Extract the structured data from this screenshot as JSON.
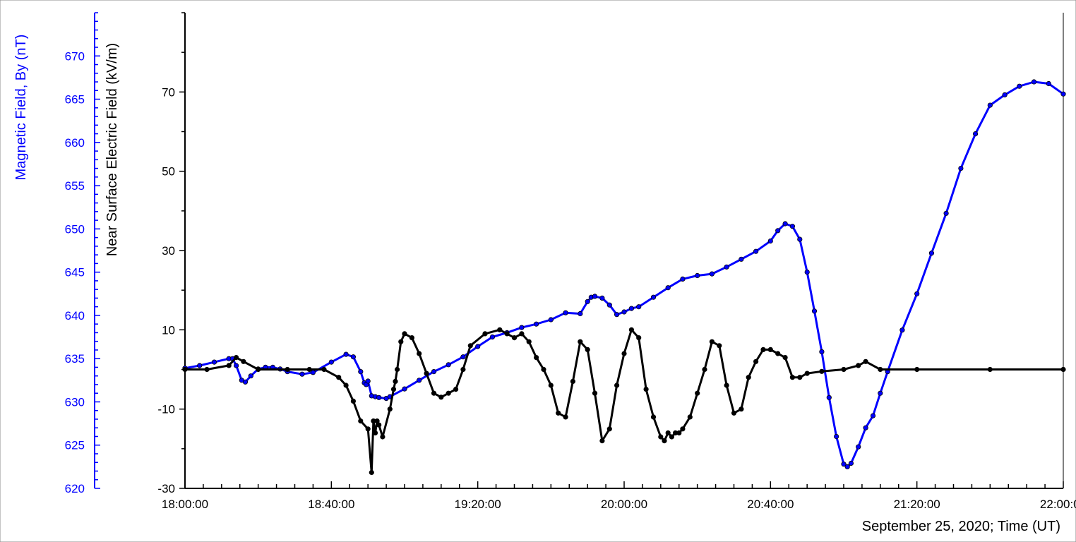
{
  "chart_data": {
    "type": "line",
    "xlabel": "September 25, 2020; Time (UT)",
    "x_tick_labels": [
      "18:00:00",
      "18:40:00",
      "19:20:00",
      "20:00:00",
      "20:40:00",
      "21:20:00",
      "22:00:00"
    ],
    "x_range_minutes": [
      0,
      240
    ],
    "y_left_outer": {
      "label": "Magnetic Field, By (nT)",
      "range": [
        620,
        675
      ],
      "ticks": [
        620,
        625,
        630,
        635,
        640,
        645,
        650,
        655,
        660,
        665,
        670
      ],
      "color": "#0000ff"
    },
    "y_left_inner": {
      "label": "Near Surface Electric Field (kV/m)",
      "range": [
        -30,
        90
      ],
      "ticks": [
        -30,
        -10,
        10,
        30,
        50,
        70
      ],
      "color": "#000000"
    },
    "series": [
      {
        "axis": "magnetic",
        "color": "#0000ff",
        "x_minutes": [
          0,
          4,
          8,
          12,
          13,
          14,
          15.5,
          16.5,
          18,
          20,
          22,
          24,
          26,
          28,
          32,
          35,
          40,
          44,
          46,
          48,
          49,
          49.5,
          50,
          51,
          52,
          53,
          55,
          56,
          60,
          64,
          68,
          72,
          76,
          80,
          84,
          88,
          92,
          96,
          100,
          104,
          108,
          110,
          111,
          112,
          114,
          116,
          118,
          120,
          122,
          124,
          128,
          132,
          136,
          140,
          144,
          148,
          152,
          156,
          160,
          162,
          164,
          166,
          168,
          170,
          172,
          174,
          176,
          178,
          180,
          181,
          182,
          184,
          186,
          188,
          190,
          192,
          196,
          200,
          204,
          208,
          212,
          216,
          220,
          224,
          228,
          232,
          236,
          240
        ],
        "y_nT": [
          633.9,
          634.2,
          634.6,
          635.0,
          635.0,
          634.2,
          632.5,
          632.3,
          633.0,
          633.8,
          634.0,
          634.0,
          633.8,
          633.5,
          633.2,
          633.4,
          634.6,
          635.5,
          635.2,
          633.5,
          632.2,
          632.0,
          632.4,
          630.7,
          630.6,
          630.5,
          630.4,
          630.6,
          631.5,
          632.5,
          633.5,
          634.3,
          635.2,
          636.4,
          637.5,
          638.0,
          638.6,
          639.0,
          639.5,
          640.3,
          640.2,
          641.6,
          642.1,
          642.2,
          642.0,
          641.2,
          640.1,
          640.4,
          640.8,
          641.0,
          642.1,
          643.2,
          644.2,
          644.6,
          644.8,
          645.6,
          646.5,
          647.4,
          648.6,
          649.8,
          650.6,
          650.3,
          648.8,
          645.0,
          640.5,
          635.8,
          630.5,
          626.0,
          622.8,
          622.5,
          622.9,
          624.8,
          627.0,
          628.4,
          631.0,
          633.5,
          638.3,
          642.5,
          647.2,
          651.8,
          657.0,
          661.0,
          664.3,
          665.5,
          666.5,
          667.0,
          666.8,
          665.6
        ]
      },
      {
        "axis": "electric",
        "color": "#000000",
        "x_minutes": [
          0,
          6,
          12,
          14,
          16,
          20,
          28,
          34,
          38,
          42,
          44,
          46,
          48,
          50,
          51,
          51.5,
          52,
          52.5,
          53,
          54,
          56,
          57,
          57.5,
          58,
          59,
          60,
          62,
          64,
          66,
          68,
          70,
          72,
          74,
          76,
          78,
          82,
          86,
          88,
          90,
          92,
          94,
          96,
          98,
          100,
          102,
          104,
          106,
          108,
          110,
          112,
          114,
          116,
          118,
          120,
          122,
          124,
          126,
          128,
          130,
          131,
          132,
          133,
          134,
          135,
          136,
          138,
          140,
          142,
          144,
          146,
          148,
          150,
          152,
          154,
          156,
          158,
          160,
          162,
          164,
          166,
          168,
          170,
          174,
          180,
          184,
          186,
          190,
          200,
          220,
          240
        ],
        "y_kvm": [
          0,
          0,
          1,
          3,
          2,
          0,
          0,
          0,
          0,
          -2,
          -4,
          -8,
          -13,
          -15,
          -26,
          -13,
          -16,
          -13,
          -14,
          -17,
          -10,
          -5,
          -3,
          0,
          7,
          9,
          8,
          4,
          -1,
          -6,
          -7,
          -6,
          -5,
          0,
          6,
          9,
          10,
          9,
          8,
          9,
          7,
          3,
          0,
          -4,
          -11,
          -12,
          -3,
          7,
          5,
          -6,
          -18,
          -15,
          -4,
          4,
          10,
          8,
          -5,
          -12,
          -17,
          -18,
          -16,
          -17,
          -16,
          -16,
          -15,
          -12,
          -6,
          0,
          7,
          6,
          -4,
          -11,
          -10,
          -2,
          2,
          5,
          5,
          4,
          3,
          -2,
          -2,
          -1,
          -0.5,
          0,
          1,
          2,
          0,
          0,
          0,
          0
        ]
      }
    ],
    "grid": false,
    "legend": "none"
  }
}
